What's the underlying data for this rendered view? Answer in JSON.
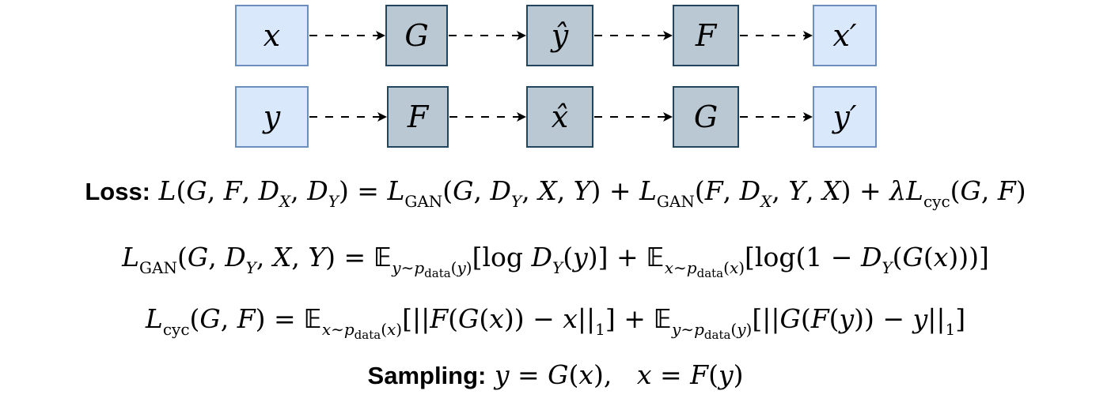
{
  "diagram": {
    "row1": {
      "x": "x",
      "G": "G",
      "y_hat": "ŷ",
      "F": "F",
      "x_prime": "x′"
    },
    "row2": {
      "y": "y",
      "F": "F",
      "x_hat": "x̂",
      "G": "G",
      "y_prime": "y′"
    },
    "colors": {
      "io_fill": "#dae8fc",
      "io_stroke": "#6c8ebf",
      "fn_fill": "#bac8d3",
      "fn_stroke": "#23445d"
    }
  },
  "equations": {
    "loss_label": "Loss:",
    "sampling_label": "Sampling:"
  }
}
